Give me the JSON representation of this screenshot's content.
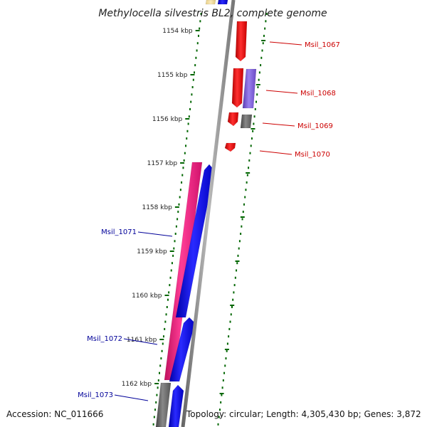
{
  "title": "Methylocella silvestris BL2, complete genome",
  "accession": "Accession: NC_011666",
  "topology": "Topology: circular; Length: 4,305,430 bp; Genes: 3,872",
  "ticks": [
    {
      "kbp": 1154,
      "label": "1154 kbp"
    },
    {
      "kbp": 1155,
      "label": "1155 kbp"
    },
    {
      "kbp": 1156,
      "label": "1156 kbp"
    },
    {
      "kbp": 1157,
      "label": "1157 kbp"
    },
    {
      "kbp": 1158,
      "label": "1158 kbp"
    },
    {
      "kbp": 1159,
      "label": "1159 kbp"
    },
    {
      "kbp": 1160,
      "label": "1160 kbp"
    },
    {
      "kbp": 1161,
      "label": "1161 kbp"
    },
    {
      "kbp": 1162,
      "label": "1162 kbp"
    }
  ],
  "gene_labels": [
    {
      "name": "Msil_1067",
      "strand": "forward"
    },
    {
      "name": "Msil_1068",
      "strand": "forward"
    },
    {
      "name": "Msil_1069",
      "strand": "forward"
    },
    {
      "name": "Msil_1070",
      "strand": "forward"
    },
    {
      "name": "Msil_1071",
      "strand": "reverse"
    },
    {
      "name": "Msil_1072",
      "strand": "reverse"
    },
    {
      "name": "Msil_1073",
      "strand": "reverse"
    }
  ],
  "colors": {
    "forward_label": "#cc0000",
    "reverse_label": "#000099",
    "backbone": "#888888",
    "tick": "#006600",
    "red_gene": "#ff0000",
    "blue_gene": "#0000ee",
    "pink_gene": "#ee1a7a",
    "purple_gene": "#7a5ad6",
    "grey_gene": "#666666",
    "yellow_gene": "#f2dea0"
  }
}
